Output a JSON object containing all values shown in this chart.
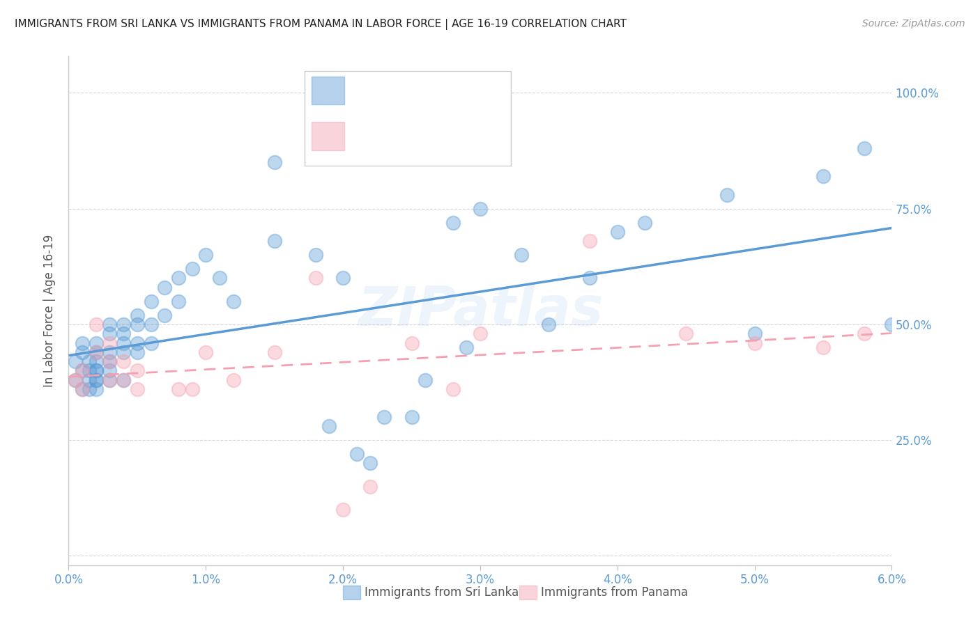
{
  "title": "IMMIGRANTS FROM SRI LANKA VS IMMIGRANTS FROM PANAMA IN LABOR FORCE | AGE 16-19 CORRELATION CHART",
  "source": "Source: ZipAtlas.com",
  "ylabel": "In Labor Force | Age 16-19",
  "watermark": "ZIPatlas",
  "blue_color": "#5B9BD5",
  "pink_color": "#F4A0B0",
  "red_color": "#FF0000",
  "tick_label_color": "#5B9BD5",
  "grid_color": "#CCCCCC",
  "background_color": "#FFFFFF",
  "xlim": [
    0.0,
    0.06
  ],
  "ylim": [
    -0.02,
    1.08
  ],
  "xticks": [
    0.0,
    0.01,
    0.02,
    0.03,
    0.04,
    0.05,
    0.06
  ],
  "xtick_labels": [
    "0.0%",
    "1.0%",
    "2.0%",
    "3.0%",
    "4.0%",
    "5.0%",
    "6.0%"
  ],
  "yticks": [
    0.0,
    0.25,
    0.5,
    0.75,
    1.0
  ],
  "ytick_labels": [
    "",
    "25.0%",
    "50.0%",
    "75.0%",
    "100.0%"
  ],
  "sri_lanka_x": [
    0.0005,
    0.0005,
    0.001,
    0.001,
    0.001,
    0.001,
    0.0015,
    0.0015,
    0.0015,
    0.0015,
    0.002,
    0.002,
    0.002,
    0.002,
    0.002,
    0.002,
    0.002,
    0.002,
    0.003,
    0.003,
    0.003,
    0.003,
    0.003,
    0.003,
    0.004,
    0.004,
    0.004,
    0.004,
    0.004,
    0.005,
    0.005,
    0.005,
    0.005,
    0.006,
    0.006,
    0.006,
    0.007,
    0.007,
    0.008,
    0.008,
    0.009,
    0.01,
    0.011,
    0.012,
    0.015,
    0.018,
    0.02,
    0.022,
    0.025,
    0.028,
    0.03,
    0.033,
    0.038,
    0.04,
    0.042,
    0.048,
    0.05,
    0.055,
    0.058,
    0.06,
    0.015,
    0.019,
    0.021,
    0.023,
    0.026,
    0.029,
    0.035
  ],
  "sri_lanka_y": [
    0.38,
    0.42,
    0.4,
    0.36,
    0.44,
    0.46,
    0.42,
    0.4,
    0.36,
    0.38,
    0.38,
    0.4,
    0.42,
    0.44,
    0.36,
    0.38,
    0.4,
    0.46,
    0.42,
    0.44,
    0.48,
    0.5,
    0.38,
    0.4,
    0.48,
    0.46,
    0.44,
    0.5,
    0.38,
    0.5,
    0.52,
    0.46,
    0.44,
    0.55,
    0.5,
    0.46,
    0.58,
    0.52,
    0.6,
    0.55,
    0.62,
    0.65,
    0.6,
    0.55,
    0.68,
    0.65,
    0.6,
    0.2,
    0.3,
    0.72,
    0.75,
    0.65,
    0.6,
    0.7,
    0.72,
    0.78,
    0.48,
    0.82,
    0.88,
    0.5,
    0.85,
    0.28,
    0.22,
    0.3,
    0.38,
    0.45,
    0.5
  ],
  "panama_x": [
    0.0005,
    0.001,
    0.001,
    0.002,
    0.002,
    0.003,
    0.003,
    0.003,
    0.004,
    0.004,
    0.005,
    0.005,
    0.008,
    0.009,
    0.01,
    0.012,
    0.015,
    0.018,
    0.02,
    0.022,
    0.025,
    0.028,
    0.03,
    0.038,
    0.045,
    0.058,
    0.055,
    0.05
  ],
  "panama_y": [
    0.38,
    0.4,
    0.36,
    0.44,
    0.5,
    0.46,
    0.42,
    0.38,
    0.42,
    0.38,
    0.4,
    0.36,
    0.36,
    0.36,
    0.44,
    0.38,
    0.44,
    0.6,
    0.1,
    0.15,
    0.46,
    0.36,
    0.48,
    0.68,
    0.48,
    0.48,
    0.45,
    0.46
  ]
}
